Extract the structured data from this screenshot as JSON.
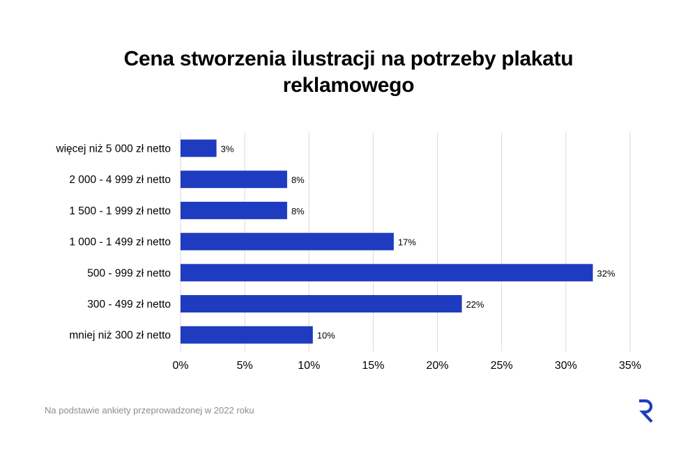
{
  "title_lines": [
    "Cena stworzenia ilustracji na potrzeby plakatu",
    "reklamowego"
  ],
  "footnote": "Na podstawie ankiety przeprowadzonej w 2022 roku",
  "brand_color": "#1f3bbf",
  "chart_data": {
    "type": "bar",
    "orientation": "horizontal",
    "title": "Cena stworzenia ilustracji na potrzeby plakatu reklamowego",
    "categories": [
      "więcej niż 5 000 zł netto",
      "2 000 - 4 999 zł netto",
      "1 500 - 1 999 zł netto",
      "1 000 - 1 499 zł netto",
      "500 - 999 zł netto",
      "300 - 499 zł netto",
      "mniej niż 300 zł netto"
    ],
    "values": [
      2.8,
      8.3,
      8.3,
      16.6,
      32.1,
      21.9,
      10.3
    ],
    "data_labels": [
      "3%",
      "8%",
      "8%",
      "17%",
      "32%",
      "22%",
      "10%"
    ],
    "xlim": [
      0,
      35
    ],
    "xticks": [
      0,
      5,
      10,
      15,
      20,
      25,
      30,
      35
    ],
    "xtick_labels": [
      "0%",
      "5%",
      "10%",
      "15%",
      "20%",
      "25%",
      "30%",
      "35%"
    ],
    "xlabel": "",
    "ylabel": "",
    "grid": "vertical",
    "bar_color": "#1f3bbf",
    "grid_color": "#d9d9d9"
  }
}
